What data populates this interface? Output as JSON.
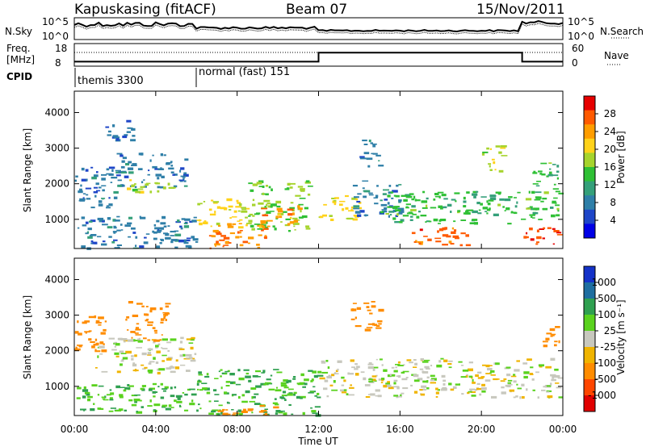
{
  "header": {
    "station": "Kapuskasing (fitACF)",
    "beam": "Beam 07",
    "date": "15/Nov/2011"
  },
  "top_panels": {
    "nsky_label": "N.Sky",
    "nsearch_label": "N.Search",
    "freq_label_line1": "Freq.",
    "freq_label_line2": "[MHz]",
    "nave_label": "Nave",
    "cpid_label": "CPID",
    "nsky_ticks": [
      "10^5",
      "10^0"
    ],
    "nsearch_ticks": [
      "10^5",
      "10^0"
    ],
    "freq_ticks": [
      "18",
      "8"
    ],
    "nave_ticks": [
      "60",
      "0"
    ],
    "cpid_segments": [
      {
        "label": "themis 3300",
        "start_ut": 0,
        "end_ut": 6
      },
      {
        "label": "normal (fast) 151",
        "start_ut": 6,
        "end_ut": 24
      }
    ],
    "freq_series": {
      "x_ut": [
        0,
        12,
        12,
        22,
        22,
        24
      ],
      "y_mhz": [
        10,
        10,
        14,
        14,
        10,
        10
      ]
    }
  },
  "colors": {
    "power_scale": [
      "#0000e6",
      "#1e46c8",
      "#2f7fa8",
      "#35a07a",
      "#2fc035",
      "#a6d42d",
      "#ffd21a",
      "#ff9d00",
      "#ff5a00",
      "#e60000"
    ],
    "velocity_scale": [
      "#1432c8",
      "#1e6ea0",
      "#2fa050",
      "#5ad21e",
      "#c8c8be",
      "#f0b400",
      "#ff8c00",
      "#ff4600",
      "#e10000"
    ]
  },
  "chart_data": [
    {
      "type": "heatmap",
      "name": "power",
      "ylabel": "Slant Range [km]",
      "xlim": [
        0,
        24
      ],
      "ylim": [
        180,
        4600
      ],
      "yticks": [
        "1000",
        "2000",
        "3000",
        "4000"
      ],
      "colorbar_label": "Power [dB]",
      "colorbar_ticks": [
        "28",
        "24",
        "20",
        "16",
        "12",
        "8",
        "4"
      ],
      "colorbar_range": [
        0,
        32
      ],
      "echo_regions": [
        {
          "t0": 0.0,
          "t1": 6.0,
          "r0": 200,
          "r1": 1100,
          "value": 8
        },
        {
          "t0": 0.0,
          "t1": 2.0,
          "r0": 1300,
          "r1": 2500,
          "value": 8
        },
        {
          "t0": 2.0,
          "t1": 5.5,
          "r0": 1900,
          "r1": 2900,
          "value": 8
        },
        {
          "t0": 2.5,
          "t1": 5.0,
          "r0": 1800,
          "r1": 2200,
          "value": 18
        },
        {
          "t0": 1.5,
          "t1": 3.0,
          "r0": 3200,
          "r1": 3800,
          "value": 7
        },
        {
          "t0": 6.0,
          "t1": 8.5,
          "r0": 800,
          "r1": 1600,
          "value": 20
        },
        {
          "t0": 6.5,
          "t1": 9.5,
          "r0": 200,
          "r1": 900,
          "value": 25
        },
        {
          "t0": 8.5,
          "t1": 11.5,
          "r0": 700,
          "r1": 2100,
          "value": 16
        },
        {
          "t0": 9.0,
          "t1": 11.0,
          "r0": 800,
          "r1": 1400,
          "value": 24
        },
        {
          "t0": 12.0,
          "t1": 14.0,
          "r0": 1000,
          "r1": 1700,
          "value": 20
        },
        {
          "t0": 13.5,
          "t1": 16.0,
          "r0": 1100,
          "r1": 2100,
          "value": 8
        },
        {
          "t0": 15.0,
          "t1": 22.8,
          "r0": 900,
          "r1": 1800,
          "value": 14
        },
        {
          "t0": 16.5,
          "t1": 19.5,
          "r0": 300,
          "r1": 800,
          "value": 27
        },
        {
          "t0": 22.0,
          "t1": 23.8,
          "r0": 300,
          "r1": 800,
          "value": 28
        },
        {
          "t0": 22.5,
          "t1": 23.8,
          "r0": 1000,
          "r1": 2600,
          "value": 14
        },
        {
          "t0": 14.0,
          "t1": 15.0,
          "r0": 2500,
          "r1": 3300,
          "value": 8
        },
        {
          "t0": 20.0,
          "t1": 21.0,
          "r0": 2300,
          "r1": 3100,
          "value": 18
        }
      ]
    },
    {
      "type": "heatmap",
      "name": "velocity",
      "ylabel": "Slant Range [km]",
      "xlabel": "Time UT",
      "xlim": [
        0,
        24
      ],
      "ylim": [
        180,
        4600
      ],
      "xticks": [
        "00:00",
        "04:00",
        "08:00",
        "12:00",
        "16:00",
        "20:00",
        "00:00"
      ],
      "yticks": [
        "1000",
        "2000",
        "3000",
        "4000"
      ],
      "colorbar_label": "Velocity [m s⁻¹]",
      "colorbar_ticks": [
        "1000",
        "500",
        "100",
        "25",
        "-25",
        "-100",
        "-500",
        "-1000"
      ],
      "echo_regions": [
        {
          "t0": 0.0,
          "t1": 6.0,
          "r0": 300,
          "r1": 1100,
          "value": 100
        },
        {
          "t0": 0.0,
          "t1": 1.5,
          "r0": 1900,
          "r1": 3000,
          "value": -300
        },
        {
          "t0": 1.0,
          "t1": 6.0,
          "r0": 1400,
          "r1": 2400,
          "value": 0
        },
        {
          "t0": 2.5,
          "t1": 4.5,
          "r0": 2300,
          "r1": 3400,
          "value": -300
        },
        {
          "t0": 6.0,
          "t1": 12.0,
          "r0": 200,
          "r1": 1500,
          "value": 100
        },
        {
          "t0": 7.0,
          "t1": 10.0,
          "r0": 200,
          "r1": 500,
          "value": -200
        },
        {
          "t0": 12.0,
          "t1": 23.8,
          "r0": 700,
          "r1": 1800,
          "value": 0
        },
        {
          "t0": 13.5,
          "t1": 15.0,
          "r0": 2600,
          "r1": 3400,
          "value": -300
        },
        {
          "t0": 23.0,
          "t1": 23.8,
          "r0": 2000,
          "r1": 2700,
          "value": -300
        }
      ]
    }
  ]
}
